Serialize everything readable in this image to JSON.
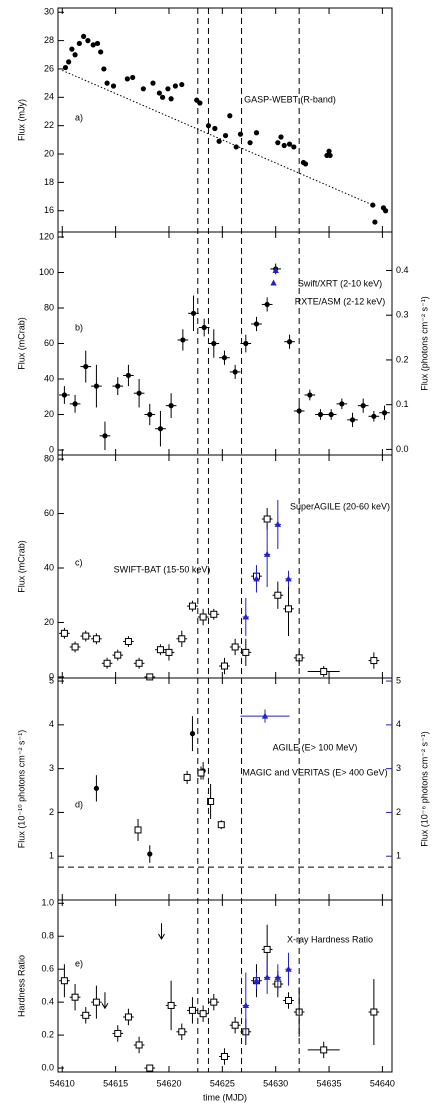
{
  "chart_data": [
    {
      "type": "scatter",
      "panel": "a)",
      "ylabel": "Flux (mJy)",
      "ylim": [
        14.5,
        30.3
      ],
      "yticks": [
        16,
        18,
        20,
        22,
        24,
        26,
        28,
        30
      ],
      "series": [
        {
          "name": "GASP-WEBT (R-band)",
          "marker": "circle",
          "color": "#000000",
          "x": [
            54610.3,
            54610.6,
            54610.9,
            54611.2,
            54611.6,
            54612.0,
            54612.4,
            54612.9,
            54613.3,
            54613.6,
            54613.9,
            54614.2,
            54614.8,
            54616.1,
            54616.6,
            54617.6,
            54618.5,
            54619.1,
            54619.4,
            54619.9,
            54620.2,
            54620.6,
            54621.2,
            54622.6,
            54622.9,
            54623.7,
            54624.3,
            54624.7,
            54625.3,
            54625.7,
            54626.3,
            54626.7,
            54627.6,
            54628.2,
            54630.2,
            54630.5,
            54630.8,
            54631.3,
            54631.7,
            54632.6,
            54632.8,
            54634.8,
            54635.0,
            54635.1,
            54639.1,
            54639.3,
            54640.1,
            54640.3
          ],
          "y": [
            26.1,
            26.5,
            27.4,
            27.0,
            27.8,
            28.3,
            28.0,
            27.7,
            27.8,
            27.2,
            26.0,
            25.0,
            24.8,
            25.3,
            25.4,
            24.6,
            25.0,
            24.3,
            24.0,
            24.6,
            23.9,
            24.8,
            24.9,
            23.8,
            23.6,
            22.0,
            21.8,
            20.9,
            21.3,
            22.7,
            20.5,
            21.4,
            20.8,
            21.5,
            20.8,
            21.2,
            20.6,
            20.7,
            20.5,
            19.4,
            19.3,
            19.9,
            20.2,
            19.9,
            16.4,
            15.2,
            16.2,
            16.0
          ]
        }
      ],
      "trend": {
        "x": [
          54610.0,
          54639.4
        ],
        "y": [
          25.9,
          16.3
        ]
      }
    },
    {
      "type": "scatter",
      "panel": "b)",
      "ylabel": "Flux (mCrab)",
      "y2label": "Flux (photons cm⁻² s⁻¹)",
      "ylim": [
        -2.8,
        122.8
      ],
      "yticks": [
        0,
        20,
        40,
        60,
        80,
        100,
        120
      ],
      "y2lim": [
        -0.0125,
        0.486
      ],
      "y2ticks": [
        {
          "value": 0,
          "label": "0.0"
        },
        0.1,
        0.2,
        0.3,
        0.4
      ],
      "series": [
        {
          "name": "RXTE/ASM (2-12 keV)",
          "marker": "circle",
          "color": "#000000",
          "x": [
            54610.2,
            54611.2,
            54612.2,
            54613.2,
            54614.0,
            54615.2,
            54616.2,
            54617.2,
            54618.2,
            54619.2,
            54620.2,
            54621.3,
            54622.3,
            54623.3,
            54624.2,
            54625.2,
            54626.2,
            54627.2,
            54628.2,
            54629.2,
            54630.0,
            54631.3,
            54632.2,
            54633.2,
            54634.2,
            54635.2,
            54636.2,
            54637.2,
            54638.2,
            54639.2,
            54640.2
          ],
          "y": [
            31,
            26,
            47,
            36,
            8,
            36,
            42,
            32,
            20,
            12,
            25,
            62,
            77,
            69,
            60,
            52,
            44,
            60,
            71,
            82,
            102,
            61,
            22,
            31,
            20,
            20,
            26,
            17,
            25,
            19,
            21
          ],
          "xerr": [
            0.5,
            0.5,
            0.5,
            0.5,
            0.5,
            0.5,
            0.5,
            0.5,
            0.5,
            0.5,
            0.5,
            0.5,
            0.5,
            0.5,
            0.5,
            0.5,
            0.5,
            0.5,
            0.5,
            0.5,
            0.5,
            0.5,
            0.5,
            0.5,
            0.5,
            0.5,
            0.5,
            0.5,
            0.5,
            0.5,
            0.5
          ],
          "yerr": [
            5,
            5,
            9,
            12,
            8,
            5,
            6,
            8,
            6,
            10,
            7,
            6,
            10,
            5,
            8,
            4,
            4,
            5,
            4,
            4,
            3,
            4,
            4,
            3,
            3,
            3,
            3,
            4,
            4,
            3,
            4
          ]
        },
        {
          "name": "Swift/XRT (2-10 keV)",
          "marker": "triangle",
          "color": "#2222cc",
          "axis": "y2",
          "x": [
            54629.8,
            54630.0
          ],
          "y": [
            0.372,
            0.4
          ]
        }
      ]
    },
    {
      "type": "scatter",
      "panel": "c)",
      "ylabel": "Flux (mCrab)",
      "ylim": [
        -0.4,
        81.5
      ],
      "yticks": [
        0,
        20,
        40,
        60,
        80
      ],
      "series": [
        {
          "name": "SWIFT-BAT (15-50 keV)",
          "marker": "square",
          "color": "#000000",
          "x": [
            54610.2,
            54611.2,
            54612.2,
            54613.2,
            54614.2,
            54615.2,
            54616.2,
            54617.2,
            54618.2,
            54619.2,
            54620.0,
            54621.2,
            54622.2,
            54623.2,
            54624.2,
            54625.2,
            54626.2,
            54627.2,
            54628.2,
            54629.2,
            54630.2,
            54631.2,
            54632.2,
            54634.5,
            54639.2
          ],
          "y": [
            16,
            11,
            15,
            14,
            5,
            8,
            13,
            5,
            0,
            10,
            9,
            14,
            26,
            22,
            23,
            4,
            11,
            9,
            37,
            58,
            30,
            25,
            7,
            2,
            6
          ],
          "xerr": [
            0.5,
            0.5,
            0.5,
            0.5,
            0.5,
            0.5,
            0.5,
            0.5,
            0.5,
            0.5,
            0.5,
            0.5,
            0.5,
            0.5,
            0.5,
            0.5,
            0.5,
            0.5,
            0.5,
            0.5,
            0.5,
            0.5,
            0.5,
            1.5,
            0.5
          ],
          "yerr": [
            2,
            2,
            2,
            2,
            2,
            2,
            2,
            2,
            1,
            2,
            3,
            3,
            2,
            3,
            2,
            3,
            3,
            5,
            4,
            4,
            5,
            10,
            3,
            2,
            3
          ]
        },
        {
          "name": "SuperAGILE (20-60 keV)",
          "marker": "triangle",
          "color": "#2222cc",
          "x": [
            54627.2,
            54628.2,
            54629.2,
            54630.2,
            54631.2
          ],
          "y": [
            22,
            36,
            45,
            56,
            36
          ],
          "xerr": [
            0.3,
            0.3,
            0.3,
            0.3,
            0.3
          ],
          "yerr": [
            7,
            5,
            12,
            9,
            3
          ]
        }
      ]
    },
    {
      "type": "scatter",
      "panel": "d)",
      "ylabel": "Flux (10⁻¹⁰ photons cm⁻² s⁻¹)",
      "y2label": "Flux (10⁻⁶ photons cm⁻² s⁻¹)",
      "ylim": [
        0.0,
        5.07
      ],
      "yticks": [
        1,
        2,
        3,
        4,
        5
      ],
      "y2lim": [
        0.0,
        5.07
      ],
      "y2ticks": [
        1,
        2,
        3,
        4,
        5
      ],
      "hline": 0.75,
      "series": [
        {
          "name": "MAGIC and VERITAS (E> 400 GeV)",
          "marker": "circle",
          "color": "#000000",
          "x": [
            54613.2,
            54618.2,
            54622.2,
            54623.2
          ],
          "y": [
            2.55,
            1.05,
            3.8,
            2.95
          ],
          "yerr": [
            0.3,
            0.2,
            0.4,
            0.2
          ]
        },
        {
          "marker": "square",
          "color": "#000000",
          "x": [
            54617.1,
            54621.7,
            54623.0,
            54623.9,
            54624.9
          ],
          "y": [
            1.6,
            2.8,
            2.9,
            2.25,
            1.72
          ],
          "yerr": [
            0.25,
            0.15,
            0.15,
            0.4,
            0.1
          ]
        },
        {
          "name": "AGILE (E> 100 MeV)",
          "marker": "triangle",
          "color": "#2222cc",
          "axis": "y2",
          "x": [
            54629.0
          ],
          "y": [
            4.2
          ],
          "xerr": [
            2.3
          ],
          "yerr": [
            0.15
          ]
        }
      ]
    },
    {
      "type": "scatter",
      "panel": "e)",
      "ylabel": "Hardness Ratio",
      "xlabel": "time (MJD)",
      "ylim": [
        -0.024,
        1.02
      ],
      "yticks": [
        {
          "value": 0,
          "label": "0.0"
        },
        0.2,
        0.4,
        0.6,
        0.8,
        {
          "value": 1,
          "label": "1.0"
        }
      ],
      "xlim": [
        54609.6,
        54640.9
      ],
      "xticks": [
        54610,
        54615,
        54620,
        54625,
        54630,
        54635,
        54640
      ],
      "vlines": [
        54622.7,
        54623.7,
        54626.8,
        54632.2
      ],
      "upper_limits": {
        "x": [
          54614.0,
          54619.3
        ],
        "y": [
          0.46,
          0.88
        ]
      },
      "series": [
        {
          "name": "X-ray Hardness Ratio",
          "marker": "square",
          "color": "#000000",
          "x": [
            54610.2,
            54611.2,
            54612.2,
            54613.2,
            54615.2,
            54616.2,
            54617.2,
            54618.2,
            54620.2,
            54621.2,
            54622.2,
            54623.2,
            54624.2,
            54625.2,
            54626.2,
            54627.2,
            54628.2,
            54629.2,
            54630.2,
            54631.2,
            54632.2,
            54634.5,
            54639.2
          ],
          "y": [
            0.53,
            0.43,
            0.32,
            0.4,
            0.21,
            0.31,
            0.14,
            0.0,
            0.38,
            0.22,
            0.35,
            0.33,
            0.4,
            0.07,
            0.26,
            0.22,
            0.53,
            0.72,
            0.51,
            0.41,
            0.34,
            0.11,
            0.34
          ],
          "xerr": [
            0.5,
            0.5,
            0.5,
            0.5,
            0.5,
            0.5,
            0.5,
            0.5,
            0.5,
            0.5,
            0.5,
            0.5,
            0.5,
            0.5,
            0.5,
            0.5,
            0.5,
            0.5,
            0.5,
            0.5,
            0.5,
            1.5,
            0.5
          ],
          "yerr": [
            0.1,
            0.08,
            0.05,
            0.1,
            0.05,
            0.05,
            0.05,
            0.02,
            0.15,
            0.05,
            0.08,
            0.05,
            0.05,
            0.05,
            0.05,
            0.08,
            0.1,
            0.15,
            0.08,
            0.05,
            0.15,
            0.05,
            0.2
          ]
        },
        {
          "marker": "triangle",
          "color": "#2222cc",
          "x": [
            54627.2,
            54628.2,
            54629.2,
            54630.2,
            54631.2
          ],
          "y": [
            0.38,
            0.53,
            0.55,
            0.55,
            0.6
          ],
          "xerr": [
            0.3,
            0.3,
            0.3,
            0.3,
            0.3
          ],
          "yerr": [
            0.2,
            0.05,
            0.1,
            0.08,
            0.1
          ]
        }
      ]
    }
  ]
}
